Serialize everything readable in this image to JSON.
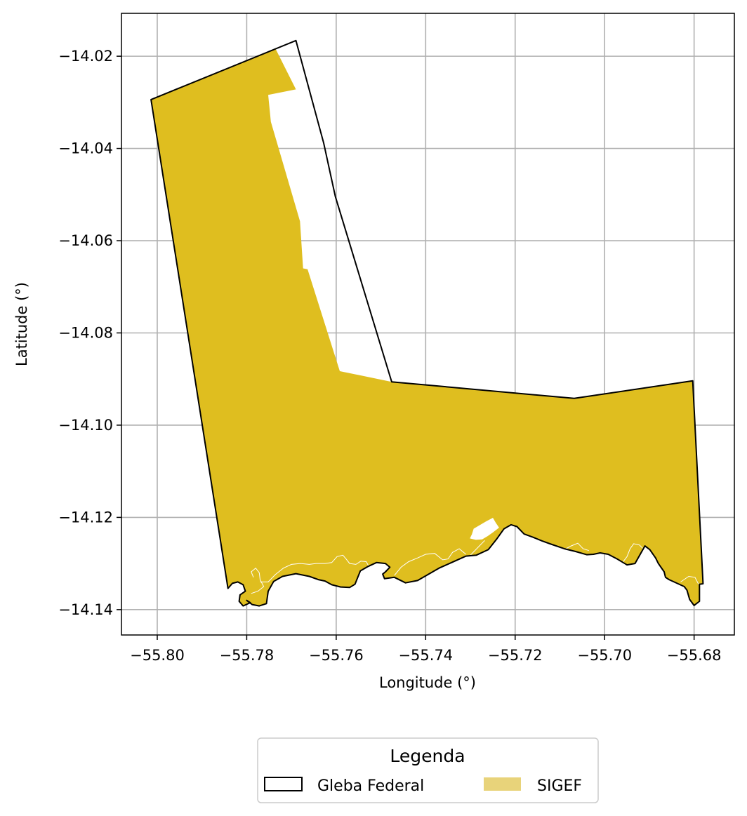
{
  "xaxis": {
    "label": "Longitude (°)",
    "ticks": [
      -55.8,
      -55.78,
      -55.76,
      -55.74,
      -55.72,
      -55.7,
      -55.68
    ],
    "tick_labels": [
      "−55.80",
      "−55.78",
      "−55.76",
      "−55.74",
      "−55.72",
      "−55.70",
      "−55.68"
    ],
    "range": [
      -55.808,
      -55.671
    ]
  },
  "yaxis": {
    "label": "Latitude (°)",
    "ticks": [
      -14.02,
      -14.04,
      -14.06,
      -14.08,
      -14.1,
      -14.12,
      -14.14
    ],
    "tick_labels": [
      "−14.02",
      "−14.04",
      "−14.06",
      "−14.08",
      "−14.10",
      "−14.12",
      "−14.14"
    ],
    "range": [
      -14.1455,
      -14.0107
    ]
  },
  "grid": true,
  "legend": {
    "title": "Legenda",
    "placement": "below-plot",
    "items": [
      {
        "label": "Gleba Federal",
        "style": "outline",
        "color": "#000000"
      },
      {
        "label": "SIGEF",
        "style": "fill",
        "color": "#e8d37a"
      }
    ]
  },
  "layers": {
    "gleba_federal": {
      "color": "#000000",
      "coords": [
        [
          -55.8014,
          -14.0294
        ],
        [
          -55.769,
          -14.0166
        ],
        [
          -55.7628,
          -14.0388
        ],
        [
          -55.7602,
          -14.0504
        ],
        [
          -55.7476,
          -14.0906
        ],
        [
          -55.7068,
          -14.0942
        ],
        [
          -55.6803,
          -14.0904
        ],
        [
          -55.678,
          -14.1344
        ],
        [
          -55.6788,
          -14.1345
        ],
        [
          -55.6788,
          -14.1382
        ],
        [
          -55.68,
          -14.1391
        ],
        [
          -55.681,
          -14.1378
        ],
        [
          -55.6816,
          -14.1358
        ],
        [
          -55.6822,
          -14.135
        ],
        [
          -55.6856,
          -14.1335
        ],
        [
          -55.6864,
          -14.133
        ],
        [
          -55.6867,
          -14.1318
        ],
        [
          -55.688,
          -14.13
        ],
        [
          -55.6886,
          -14.1288
        ],
        [
          -55.6899,
          -14.127
        ],
        [
          -55.691,
          -14.1262
        ],
        [
          -55.6932,
          -14.13
        ],
        [
          -55.695,
          -14.1303
        ],
        [
          -55.6972,
          -14.129
        ],
        [
          -55.6992,
          -14.128
        ],
        [
          -55.701,
          -14.1277
        ],
        [
          -55.7025,
          -14.128
        ],
        [
          -55.704,
          -14.1281
        ],
        [
          -55.7065,
          -14.1274
        ],
        [
          -55.709,
          -14.1268
        ],
        [
          -55.712,
          -14.1258
        ],
        [
          -55.714,
          -14.1251
        ],
        [
          -55.716,
          -14.1243
        ],
        [
          -55.718,
          -14.1236
        ],
        [
          -55.7196,
          -14.122
        ],
        [
          -55.7209,
          -14.1216
        ],
        [
          -55.7225,
          -14.1225
        ],
        [
          -55.7242,
          -14.1248
        ],
        [
          -55.726,
          -14.127
        ],
        [
          -55.7287,
          -14.1282
        ],
        [
          -55.731,
          -14.1284
        ],
        [
          -55.734,
          -14.1297
        ],
        [
          -55.737,
          -14.131
        ],
        [
          -55.7418,
          -14.1337
        ],
        [
          -55.7445,
          -14.1342
        ],
        [
          -55.747,
          -14.133
        ],
        [
          -55.7492,
          -14.1333
        ],
        [
          -55.7496,
          -14.1323
        ],
        [
          -55.749,
          -14.1318
        ],
        [
          -55.748,
          -14.1308
        ],
        [
          -55.749,
          -14.13
        ],
        [
          -55.751,
          -14.1298
        ],
        [
          -55.753,
          -14.1307
        ],
        [
          -55.7546,
          -14.1316
        ],
        [
          -55.7558,
          -14.1345
        ],
        [
          -55.757,
          -14.1352
        ],
        [
          -55.759,
          -14.1351
        ],
        [
          -55.761,
          -14.1346
        ],
        [
          -55.7625,
          -14.1338
        ],
        [
          -55.764,
          -14.1335
        ],
        [
          -55.766,
          -14.1328
        ],
        [
          -55.769,
          -14.1322
        ],
        [
          -55.772,
          -14.1328
        ],
        [
          -55.774,
          -14.1339
        ],
        [
          -55.7752,
          -14.136
        ],
        [
          -55.7756,
          -14.1387
        ],
        [
          -55.7772,
          -14.1392
        ],
        [
          -55.7788,
          -14.1389
        ],
        [
          -55.78,
          -14.138
        ],
        [
          -55.7792,
          -14.1385
        ],
        [
          -55.7808,
          -14.1392
        ],
        [
          -55.7817,
          -14.1382
        ],
        [
          -55.7815,
          -14.1368
        ],
        [
          -55.7803,
          -14.136
        ],
        [
          -55.7808,
          -14.1346
        ],
        [
          -55.782,
          -14.134
        ],
        [
          -55.7832,
          -14.1343
        ],
        [
          -55.7842,
          -14.1354
        ],
        [
          -55.8014,
          -14.0294
        ]
      ]
    },
    "sigef": {
      "color": "#dfbe1f",
      "boundary_color": "#000000",
      "coords": [
        [
          -55.8014,
          -14.0294
        ],
        [
          -55.7736,
          -14.0183
        ],
        [
          -55.769,
          -14.0272
        ],
        [
          -55.7752,
          -14.0284
        ],
        [
          -55.7746,
          -14.0342
        ],
        [
          -55.7681,
          -14.0558
        ],
        [
          -55.7674,
          -14.066
        ],
        [
          -55.7664,
          -14.0662
        ],
        [
          -55.7592,
          -14.0883
        ],
        [
          -55.7476,
          -14.0906
        ],
        [
          -55.7068,
          -14.0942
        ],
        [
          -55.6803,
          -14.0904
        ],
        [
          -55.678,
          -14.1344
        ],
        [
          -55.6788,
          -14.1345
        ],
        [
          -55.6788,
          -14.1382
        ],
        [
          -55.68,
          -14.1391
        ],
        [
          -55.681,
          -14.1378
        ],
        [
          -55.6816,
          -14.1358
        ],
        [
          -55.6822,
          -14.135
        ],
        [
          -55.6856,
          -14.1335
        ],
        [
          -55.6864,
          -14.133
        ],
        [
          -55.6867,
          -14.1318
        ],
        [
          -55.688,
          -14.13
        ],
        [
          -55.6886,
          -14.1288
        ],
        [
          -55.6899,
          -14.127
        ],
        [
          -55.691,
          -14.1262
        ],
        [
          -55.6932,
          -14.13
        ],
        [
          -55.695,
          -14.1303
        ],
        [
          -55.6972,
          -14.129
        ],
        [
          -55.6992,
          -14.128
        ],
        [
          -55.701,
          -14.1277
        ],
        [
          -55.7025,
          -14.128
        ],
        [
          -55.704,
          -14.1281
        ],
        [
          -55.7065,
          -14.1274
        ],
        [
          -55.709,
          -14.1268
        ],
        [
          -55.712,
          -14.1258
        ],
        [
          -55.714,
          -14.1251
        ],
        [
          -55.716,
          -14.1243
        ],
        [
          -55.718,
          -14.1236
        ],
        [
          -55.7196,
          -14.122
        ],
        [
          -55.7209,
          -14.1216
        ],
        [
          -55.7225,
          -14.1225
        ],
        [
          -55.7242,
          -14.1248
        ],
        [
          -55.726,
          -14.127
        ],
        [
          -55.7287,
          -14.1282
        ],
        [
          -55.731,
          -14.1284
        ],
        [
          -55.734,
          -14.1297
        ],
        [
          -55.737,
          -14.131
        ],
        [
          -55.7418,
          -14.1337
        ],
        [
          -55.7445,
          -14.1342
        ],
        [
          -55.747,
          -14.133
        ],
        [
          -55.7492,
          -14.1333
        ],
        [
          -55.7496,
          -14.1323
        ],
        [
          -55.749,
          -14.1318
        ],
        [
          -55.748,
          -14.1308
        ],
        [
          -55.749,
          -14.13
        ],
        [
          -55.751,
          -14.1298
        ],
        [
          -55.753,
          -14.1307
        ],
        [
          -55.7546,
          -14.1316
        ],
        [
          -55.7558,
          -14.1345
        ],
        [
          -55.757,
          -14.1352
        ],
        [
          -55.759,
          -14.1351
        ],
        [
          -55.761,
          -14.1346
        ],
        [
          -55.7625,
          -14.1338
        ],
        [
          -55.764,
          -14.1335
        ],
        [
          -55.766,
          -14.1328
        ],
        [
          -55.769,
          -14.1322
        ],
        [
          -55.772,
          -14.1328
        ],
        [
          -55.774,
          -14.1339
        ],
        [
          -55.7752,
          -14.136
        ],
        [
          -55.7756,
          -14.1387
        ],
        [
          -55.7772,
          -14.1392
        ],
        [
          -55.7788,
          -14.1389
        ],
        [
          -55.78,
          -14.138
        ],
        [
          -55.7792,
          -14.1385
        ],
        [
          -55.7808,
          -14.1392
        ],
        [
          -55.7817,
          -14.1382
        ],
        [
          -55.7815,
          -14.1368
        ],
        [
          -55.7803,
          -14.136
        ],
        [
          -55.7808,
          -14.1346
        ],
        [
          -55.782,
          -14.134
        ],
        [
          -55.7832,
          -14.1343
        ],
        [
          -55.7842,
          -14.1354
        ],
        [
          -55.8014,
          -14.0294
        ]
      ],
      "white_hole": [
        [
          -55.725,
          -14.1202
        ],
        [
          -55.7244,
          -14.1212
        ],
        [
          -55.7237,
          -14.1222
        ],
        [
          -55.725,
          -14.1232
        ],
        [
          -55.7262,
          -14.124
        ],
        [
          -55.7274,
          -14.1247
        ],
        [
          -55.7288,
          -14.1248
        ],
        [
          -55.73,
          -14.1245
        ],
        [
          -55.7296,
          -14.1237
        ],
        [
          -55.7292,
          -14.1225
        ],
        [
          -55.7278,
          -14.1217
        ],
        [
          -55.7264,
          -14.1209
        ]
      ],
      "inner_lines": [
        [
          [
            -55.777,
            -14.134
          ],
          [
            -55.7752,
            -14.134
          ],
          [
            -55.7736,
            -14.1324
          ],
          [
            -55.7718,
            -14.131
          ],
          [
            -55.77,
            -14.1302
          ],
          [
            -55.768,
            -14.13
          ],
          [
            -55.766,
            -14.1302
          ],
          [
            -55.7645,
            -14.13
          ],
          [
            -55.7625,
            -14.13
          ],
          [
            -55.761,
            -14.1298
          ],
          [
            -55.7598,
            -14.1285
          ],
          [
            -55.7585,
            -14.1282
          ],
          [
            -55.7578,
            -14.129
          ],
          [
            -55.757,
            -14.13
          ],
          [
            -55.7556,
            -14.1302
          ],
          [
            -55.7545,
            -14.1295
          ],
          [
            -55.7533,
            -14.1296
          ],
          [
            -55.7525,
            -14.131
          ],
          [
            -55.7518,
            -14.1306
          ],
          [
            -55.7508,
            -14.1302
          ],
          [
            -55.7496,
            -14.1312
          ]
        ],
        [
          [
            -55.747,
            -14.1326
          ],
          [
            -55.7455,
            -14.1308
          ],
          [
            -55.7438,
            -14.1296
          ],
          [
            -55.7418,
            -14.1288
          ],
          [
            -55.74,
            -14.128
          ],
          [
            -55.738,
            -14.1278
          ],
          [
            -55.7362,
            -14.1292
          ],
          [
            -55.735,
            -14.129
          ],
          [
            -55.734,
            -14.1276
          ],
          [
            -55.7325,
            -14.1268
          ],
          [
            -55.731,
            -14.128
          ]
        ],
        [
          [
            -55.7096,
            -14.1273
          ],
          [
            -55.7075,
            -14.1262
          ],
          [
            -55.706,
            -14.1256
          ],
          [
            -55.7048,
            -14.1268
          ],
          [
            -55.7035,
            -14.1272
          ]
        ],
        [
          [
            -55.696,
            -14.1298
          ],
          [
            -55.695,
            -14.1285
          ],
          [
            -55.6943,
            -14.1268
          ],
          [
            -55.6935,
            -14.1257
          ],
          [
            -55.6922,
            -14.126
          ],
          [
            -55.6912,
            -14.127
          ]
        ],
        [
          [
            -55.683,
            -14.134
          ],
          [
            -55.6812,
            -14.1328
          ],
          [
            -55.6798,
            -14.133
          ],
          [
            -55.679,
            -14.1345
          ]
        ],
        [
          [
            -55.7785,
            -14.133
          ],
          [
            -55.779,
            -14.1318
          ],
          [
            -55.778,
            -14.131
          ],
          [
            -55.7772,
            -14.132
          ],
          [
            -55.777,
            -14.1335
          ],
          [
            -55.7762,
            -14.135
          ],
          [
            -55.7775,
            -14.136
          ],
          [
            -55.779,
            -14.1365
          ]
        ],
        [
          [
            -55.73,
            -14.1282
          ],
          [
            -55.728,
            -14.1262
          ],
          [
            -55.7268,
            -14.125
          ]
        ]
      ]
    }
  }
}
